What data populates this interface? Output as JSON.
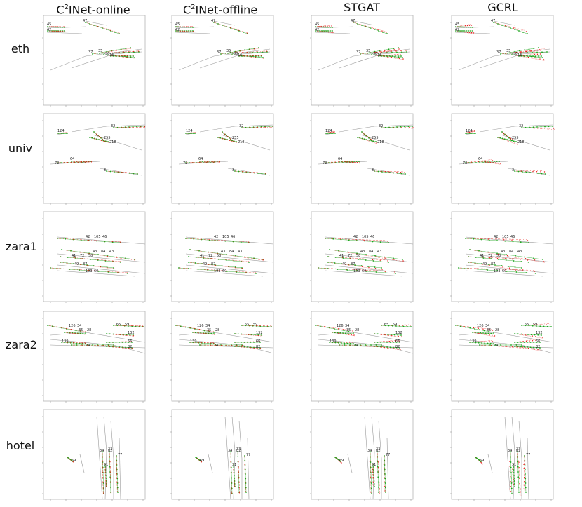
{
  "columns": [
    {
      "prefix": "C",
      "sup": "2",
      "suffix": "INet-online"
    },
    {
      "prefix": "C",
      "sup": "2",
      "suffix": "INet-offline"
    },
    {
      "prefix": "STGAT",
      "sup": "",
      "suffix": ""
    },
    {
      "prefix": "GCRL",
      "sup": "",
      "suffix": ""
    }
  ],
  "rows": [
    "eth",
    "univ",
    "zara1",
    "zara2",
    "hotel"
  ],
  "colors": {
    "ground_truth": "#1aa31a",
    "prediction": "#e8231f",
    "path": "#9a9a9a"
  },
  "scenes": {
    "eth": {
      "ids": [
        "45",
        "42",
        "47",
        "37",
        "35",
        "36",
        "16"
      ]
    },
    "univ": {
      "ids": [
        "124",
        "32",
        "255",
        "218",
        "72",
        "64",
        "3"
      ]
    },
    "zara1": {
      "ids": [
        "42",
        "43",
        "41",
        "49",
        "103",
        "105",
        "84",
        "72",
        "87",
        "60",
        "46",
        "43",
        "58"
      ]
    },
    "zara2": {
      "ids": [
        "126",
        "35",
        "65",
        "132",
        "139",
        "74",
        "66",
        "82",
        "34",
        "28",
        "59"
      ]
    },
    "hotel": {
      "ids": [
        "34",
        "33",
        "77",
        "69",
        "31",
        "82"
      ]
    }
  }
}
